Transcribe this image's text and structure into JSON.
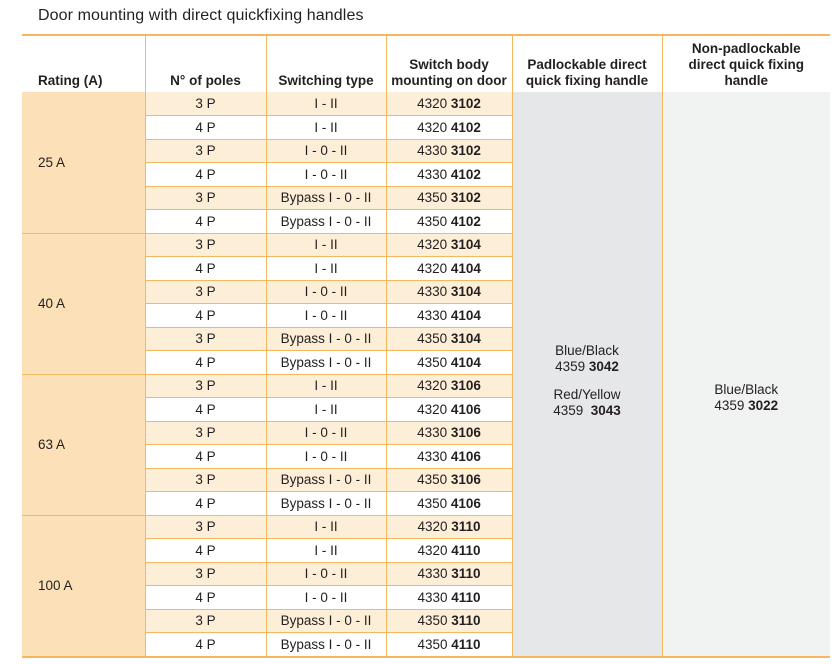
{
  "title": "Door mounting with direct quickfixing handles",
  "headers": {
    "rating": "Rating (A)",
    "poles": "N° of poles",
    "switching": "Switching type",
    "body_line1": "Switch body",
    "body_line2": "mounting on door",
    "pad_line1": "Padlockable direct",
    "pad_line2": "quick fixing handle",
    "nonpad_line1": "Non-padlockable",
    "nonpad_line2": "direct quick fixing",
    "nonpad_line3": "handle"
  },
  "groups": [
    {
      "rating": "25 A",
      "rows": [
        {
          "poles": "3 P",
          "switching": "I - II",
          "prefix": "4320",
          "code": "3102"
        },
        {
          "poles": "4 P",
          "switching": "I - II",
          "prefix": "4320",
          "code": "4102"
        },
        {
          "poles": "3 P",
          "switching": "I - 0 - II",
          "prefix": "4330",
          "code": "3102"
        },
        {
          "poles": "4 P",
          "switching": "I - 0 - II",
          "prefix": "4330",
          "code": "4102"
        },
        {
          "poles": "3 P",
          "switching": "Bypass I - 0 - II",
          "prefix": "4350",
          "code": "3102"
        },
        {
          "poles": "4 P",
          "switching": "Bypass I - 0 - II",
          "prefix": "4350",
          "code": "4102"
        }
      ]
    },
    {
      "rating": "40 A",
      "rows": [
        {
          "poles": "3 P",
          "switching": "I - II",
          "prefix": "4320",
          "code": "3104"
        },
        {
          "poles": "4 P",
          "switching": "I - II",
          "prefix": "4320",
          "code": "4104"
        },
        {
          "poles": "3 P",
          "switching": "I - 0 - II",
          "prefix": "4330",
          "code": "3104"
        },
        {
          "poles": "4 P",
          "switching": "I - 0 - II",
          "prefix": "4330",
          "code": "4104"
        },
        {
          "poles": "3 P",
          "switching": "Bypass I - 0 - II",
          "prefix": "4350",
          "code": "3104"
        },
        {
          "poles": "4 P",
          "switching": "Bypass I - 0 - II",
          "prefix": "4350",
          "code": "4104"
        }
      ]
    },
    {
      "rating": "63 A",
      "rows": [
        {
          "poles": "3 P",
          "switching": "I - II",
          "prefix": "4320",
          "code": "3106"
        },
        {
          "poles": "4 P",
          "switching": "I - II",
          "prefix": "4320",
          "code": "4106"
        },
        {
          "poles": "3 P",
          "switching": "I - 0 - II",
          "prefix": "4330",
          "code": "3106"
        },
        {
          "poles": "4 P",
          "switching": "I - 0 - II",
          "prefix": "4330",
          "code": "4106"
        },
        {
          "poles": "3 P",
          "switching": "Bypass I - 0 - II",
          "prefix": "4350",
          "code": "3106"
        },
        {
          "poles": "4 P",
          "switching": "Bypass I - 0 - II",
          "prefix": "4350",
          "code": "4106"
        }
      ]
    },
    {
      "rating": "100 A",
      "rows": [
        {
          "poles": "3 P",
          "switching": "I - II",
          "prefix": "4320",
          "code": "3110"
        },
        {
          "poles": "4 P",
          "switching": "I - II",
          "prefix": "4320",
          "code": "4110"
        },
        {
          "poles": "3 P",
          "switching": "I - 0 - II",
          "prefix": "4330",
          "code": "3110"
        },
        {
          "poles": "4 P",
          "switching": "I - 0 - II",
          "prefix": "4330",
          "code": "4110"
        },
        {
          "poles": "3 P",
          "switching": "Bypass I - 0 - II",
          "prefix": "4350",
          "code": "3110"
        },
        {
          "poles": "4 P",
          "switching": "Bypass I - 0 - II",
          "prefix": "4350",
          "code": "4110"
        }
      ]
    }
  ],
  "padlockable": {
    "option1_label": "Blue/Black",
    "option1_prefix": "4359",
    "option1_code": "3042",
    "option2_label": "Red/Yellow",
    "option2_prefix": "4359",
    "option2_code": "3043"
  },
  "non_padlockable": {
    "label": "Blue/Black",
    "prefix": "4359",
    "code": "3022"
  },
  "colors": {
    "accent_line": "#f4b860",
    "rating_bg": "#fce0b8",
    "alt_row_bg": "#fdeed8",
    "pad_bg": "#e6e7e8",
    "nonpad_bg": "#f1f2f2"
  }
}
